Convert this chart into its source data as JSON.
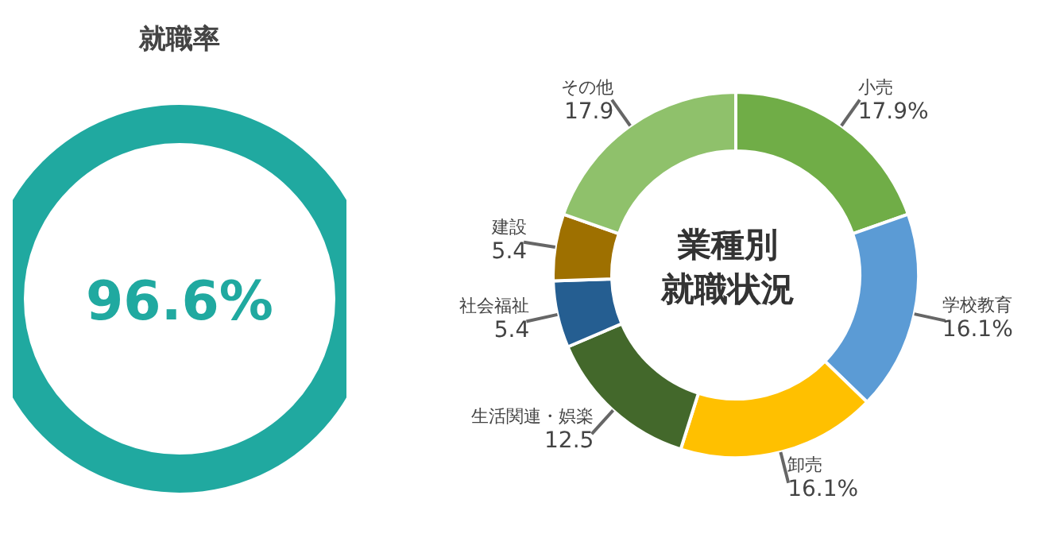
{
  "chart_data": [
    {
      "type": "other",
      "title": "就職率",
      "annotations": [
        "96.6%"
      ],
      "color": "#20a9a0"
    },
    {
      "type": "donut",
      "title": "業種別就職状況",
      "categories": [
        "小売",
        "学校教育",
        "卸売",
        "生活関連・娯楽",
        "社会福祉",
        "建設",
        "その他"
      ],
      "values": [
        17.9,
        16.1,
        16.1,
        12.5,
        5.4,
        5.4,
        17.9
      ],
      "colors": [
        "#70ad47",
        "#5b9bd5",
        "#ffc000",
        "#43682b",
        "#255e91",
        "#9e7000",
        "#8fc16b"
      ],
      "value_labels": [
        "17.9%",
        "16.1%",
        "16.1%",
        "12.5",
        "5.4",
        "5.4",
        "17.9"
      ]
    }
  ]
}
